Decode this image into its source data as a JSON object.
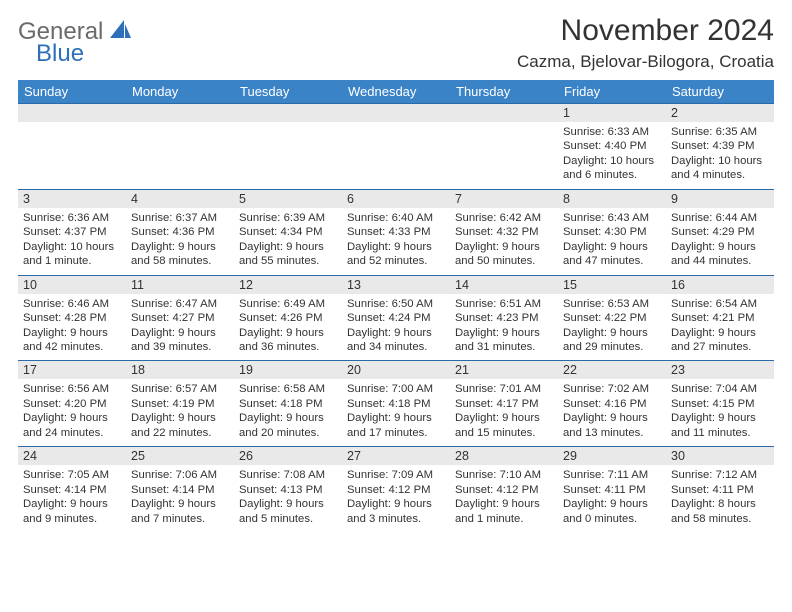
{
  "logo": {
    "general": "General",
    "blue": "Blue"
  },
  "title": "November 2024",
  "location": "Cazma, Bjelovar-Bilogora, Croatia",
  "colors": {
    "header_bg": "#3b83c7",
    "header_border": "#2b6aa8",
    "daynum_bg": "#e9e9e9",
    "logo_gray": "#6a6a6a",
    "logo_blue": "#2d6fb8",
    "text": "#333333",
    "page_bg": "#ffffff"
  },
  "font": {
    "title_size": 30,
    "location_size": 17,
    "dayhead_size": 13,
    "daynum_size": 12.5,
    "body_size": 11.3
  },
  "day_headers": [
    "Sunday",
    "Monday",
    "Tuesday",
    "Wednesday",
    "Thursday",
    "Friday",
    "Saturday"
  ],
  "weeks": [
    [
      null,
      null,
      null,
      null,
      null,
      {
        "n": "1",
        "sunrise": "Sunrise: 6:33 AM",
        "sunset": "Sunset: 4:40 PM",
        "daylight": "Daylight: 10 hours and 6 minutes."
      },
      {
        "n": "2",
        "sunrise": "Sunrise: 6:35 AM",
        "sunset": "Sunset: 4:39 PM",
        "daylight": "Daylight: 10 hours and 4 minutes."
      }
    ],
    [
      {
        "n": "3",
        "sunrise": "Sunrise: 6:36 AM",
        "sunset": "Sunset: 4:37 PM",
        "daylight": "Daylight: 10 hours and 1 minute."
      },
      {
        "n": "4",
        "sunrise": "Sunrise: 6:37 AM",
        "sunset": "Sunset: 4:36 PM",
        "daylight": "Daylight: 9 hours and 58 minutes."
      },
      {
        "n": "5",
        "sunrise": "Sunrise: 6:39 AM",
        "sunset": "Sunset: 4:34 PM",
        "daylight": "Daylight: 9 hours and 55 minutes."
      },
      {
        "n": "6",
        "sunrise": "Sunrise: 6:40 AM",
        "sunset": "Sunset: 4:33 PM",
        "daylight": "Daylight: 9 hours and 52 minutes."
      },
      {
        "n": "7",
        "sunrise": "Sunrise: 6:42 AM",
        "sunset": "Sunset: 4:32 PM",
        "daylight": "Daylight: 9 hours and 50 minutes."
      },
      {
        "n": "8",
        "sunrise": "Sunrise: 6:43 AM",
        "sunset": "Sunset: 4:30 PM",
        "daylight": "Daylight: 9 hours and 47 minutes."
      },
      {
        "n": "9",
        "sunrise": "Sunrise: 6:44 AM",
        "sunset": "Sunset: 4:29 PM",
        "daylight": "Daylight: 9 hours and 44 minutes."
      }
    ],
    [
      {
        "n": "10",
        "sunrise": "Sunrise: 6:46 AM",
        "sunset": "Sunset: 4:28 PM",
        "daylight": "Daylight: 9 hours and 42 minutes."
      },
      {
        "n": "11",
        "sunrise": "Sunrise: 6:47 AM",
        "sunset": "Sunset: 4:27 PM",
        "daylight": "Daylight: 9 hours and 39 minutes."
      },
      {
        "n": "12",
        "sunrise": "Sunrise: 6:49 AM",
        "sunset": "Sunset: 4:26 PM",
        "daylight": "Daylight: 9 hours and 36 minutes."
      },
      {
        "n": "13",
        "sunrise": "Sunrise: 6:50 AM",
        "sunset": "Sunset: 4:24 PM",
        "daylight": "Daylight: 9 hours and 34 minutes."
      },
      {
        "n": "14",
        "sunrise": "Sunrise: 6:51 AM",
        "sunset": "Sunset: 4:23 PM",
        "daylight": "Daylight: 9 hours and 31 minutes."
      },
      {
        "n": "15",
        "sunrise": "Sunrise: 6:53 AM",
        "sunset": "Sunset: 4:22 PM",
        "daylight": "Daylight: 9 hours and 29 minutes."
      },
      {
        "n": "16",
        "sunrise": "Sunrise: 6:54 AM",
        "sunset": "Sunset: 4:21 PM",
        "daylight": "Daylight: 9 hours and 27 minutes."
      }
    ],
    [
      {
        "n": "17",
        "sunrise": "Sunrise: 6:56 AM",
        "sunset": "Sunset: 4:20 PM",
        "daylight": "Daylight: 9 hours and 24 minutes."
      },
      {
        "n": "18",
        "sunrise": "Sunrise: 6:57 AM",
        "sunset": "Sunset: 4:19 PM",
        "daylight": "Daylight: 9 hours and 22 minutes."
      },
      {
        "n": "19",
        "sunrise": "Sunrise: 6:58 AM",
        "sunset": "Sunset: 4:18 PM",
        "daylight": "Daylight: 9 hours and 20 minutes."
      },
      {
        "n": "20",
        "sunrise": "Sunrise: 7:00 AM",
        "sunset": "Sunset: 4:18 PM",
        "daylight": "Daylight: 9 hours and 17 minutes."
      },
      {
        "n": "21",
        "sunrise": "Sunrise: 7:01 AM",
        "sunset": "Sunset: 4:17 PM",
        "daylight": "Daylight: 9 hours and 15 minutes."
      },
      {
        "n": "22",
        "sunrise": "Sunrise: 7:02 AM",
        "sunset": "Sunset: 4:16 PM",
        "daylight": "Daylight: 9 hours and 13 minutes."
      },
      {
        "n": "23",
        "sunrise": "Sunrise: 7:04 AM",
        "sunset": "Sunset: 4:15 PM",
        "daylight": "Daylight: 9 hours and 11 minutes."
      }
    ],
    [
      {
        "n": "24",
        "sunrise": "Sunrise: 7:05 AM",
        "sunset": "Sunset: 4:14 PM",
        "daylight": "Daylight: 9 hours and 9 minutes."
      },
      {
        "n": "25",
        "sunrise": "Sunrise: 7:06 AM",
        "sunset": "Sunset: 4:14 PM",
        "daylight": "Daylight: 9 hours and 7 minutes."
      },
      {
        "n": "26",
        "sunrise": "Sunrise: 7:08 AM",
        "sunset": "Sunset: 4:13 PM",
        "daylight": "Daylight: 9 hours and 5 minutes."
      },
      {
        "n": "27",
        "sunrise": "Sunrise: 7:09 AM",
        "sunset": "Sunset: 4:12 PM",
        "daylight": "Daylight: 9 hours and 3 minutes."
      },
      {
        "n": "28",
        "sunrise": "Sunrise: 7:10 AM",
        "sunset": "Sunset: 4:12 PM",
        "daylight": "Daylight: 9 hours and 1 minute."
      },
      {
        "n": "29",
        "sunrise": "Sunrise: 7:11 AM",
        "sunset": "Sunset: 4:11 PM",
        "daylight": "Daylight: 9 hours and 0 minutes."
      },
      {
        "n": "30",
        "sunrise": "Sunrise: 7:12 AM",
        "sunset": "Sunset: 4:11 PM",
        "daylight": "Daylight: 8 hours and 58 minutes."
      }
    ]
  ]
}
